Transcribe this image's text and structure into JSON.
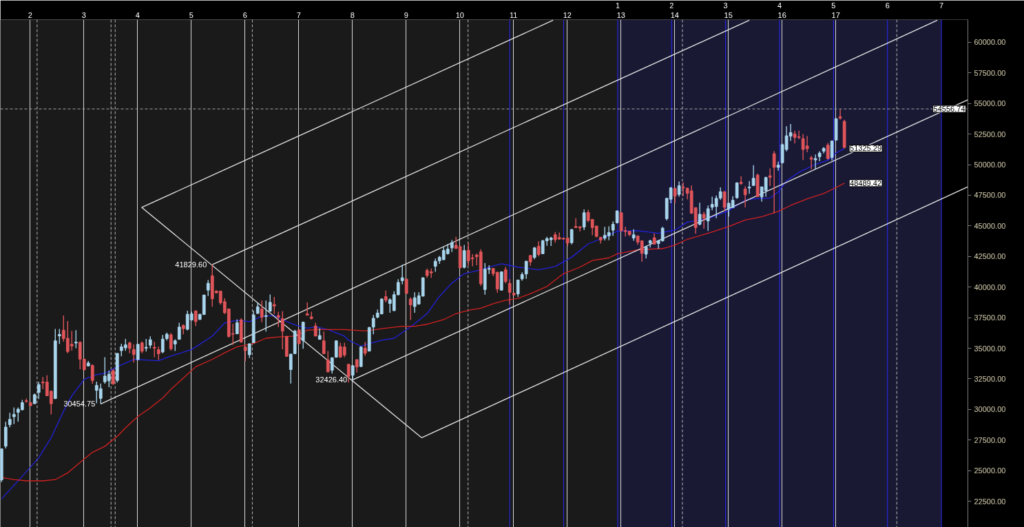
{
  "chart_data": {
    "type": "candlestick",
    "x": [
      1.467,
      1.544,
      1.621,
      1.698,
      1.775,
      1.852,
      1.928,
      2.005,
      2.082,
      2.159,
      2.236,
      2.313,
      2.39,
      2.467,
      2.544,
      2.621,
      2.698,
      2.775,
      2.852,
      2.928,
      3.005,
      3.082,
      3.159,
      3.236,
      3.313,
      3.39,
      3.467,
      3.544,
      3.621,
      3.698,
      3.775,
      3.852,
      3.928,
      4.005,
      4.082,
      4.159,
      4.236,
      4.313,
      4.39,
      4.467,
      4.544,
      4.621,
      4.698,
      4.775,
      4.852,
      4.928,
      5.005,
      5.082,
      5.159,
      5.236,
      5.313,
      5.39,
      5.467,
      5.544,
      5.621,
      5.698,
      5.775,
      5.852,
      5.928,
      6.005,
      6.082,
      6.159,
      6.236,
      6.313,
      6.39,
      6.467,
      6.544,
      6.621,
      6.698,
      6.775,
      6.852,
      6.928,
      7.005,
      7.082,
      7.159,
      7.236,
      7.313,
      7.39,
      7.467,
      7.544,
      7.621,
      7.698,
      7.775,
      7.852,
      7.928,
      8.005,
      8.082,
      8.159,
      8.236,
      8.313,
      8.39,
      8.467,
      8.544,
      8.621,
      8.698,
      8.775,
      8.852,
      8.928,
      9.005,
      9.082,
      9.159,
      9.236,
      9.313,
      9.39,
      9.467,
      9.544,
      9.621,
      9.698,
      9.775,
      9.852,
      9.928,
      10.005,
      10.082,
      10.159,
      10.236,
      10.313,
      10.39,
      10.467,
      10.544,
      10.621,
      10.698,
      10.775,
      10.852,
      10.928,
      11.005,
      11.082,
      11.159,
      11.236,
      11.313,
      11.39,
      11.467,
      11.544,
      11.621,
      11.698,
      11.775,
      11.852,
      11.928,
      12.005,
      12.082,
      12.159,
      12.236,
      12.313,
      12.39,
      12.467,
      12.544,
      12.621,
      12.698,
      12.775,
      12.852,
      12.928,
      13.005,
      13.082,
      13.159,
      13.236,
      13.313,
      13.39,
      13.467,
      13.544,
      13.621,
      13.698,
      13.775,
      13.852,
      13.928,
      14.005,
      14.082,
      14.159,
      14.236,
      14.313,
      14.39,
      14.467,
      14.544,
      14.621,
      14.698,
      14.775,
      14.852,
      14.928,
      15.005,
      15.082,
      15.159,
      15.236,
      15.313,
      15.39,
      15.467,
      15.544,
      15.621,
      15.698,
      15.775,
      15.852,
      15.928,
      16.005,
      16.082,
      16.159,
      16.236,
      16.313,
      16.39,
      16.467,
      16.544,
      16.621,
      16.698,
      16.775,
      16.852,
      16.928,
      17.005,
      17.082,
      17.159
    ],
    "ohlc": [
      [
        24250,
        26800,
        24070,
        26780
      ],
      [
        27000,
        28990,
        26820,
        28560
      ],
      [
        28760,
        29730,
        28540,
        29190
      ],
      [
        29410,
        30170,
        28810,
        29590
      ],
      [
        29770,
        30170,
        29010,
        30020
      ],
      [
        29980,
        30780,
        29910,
        30560
      ],
      [
        30710,
        30890,
        30560,
        30650
      ],
      [
        30560,
        30600,
        30300,
        30310
      ],
      [
        30470,
        31300,
        30470,
        31210
      ],
      [
        31390,
        32260,
        30850,
        32030
      ],
      [
        32240,
        32660,
        31670,
        32170
      ],
      [
        32240,
        32790,
        31090,
        31120
      ],
      [
        31490,
        31550,
        29600,
        30470
      ],
      [
        30890,
        36580,
        30850,
        35610
      ],
      [
        36010,
        36580,
        35350,
        36130
      ],
      [
        36480,
        37670,
        35540,
        35790
      ],
      [
        35820,
        37230,
        34600,
        34740
      ],
      [
        35320,
        36420,
        34810,
        35190
      ],
      [
        35430,
        36480,
        35010,
        35500
      ],
      [
        35500,
        35550,
        33290,
        34110
      ],
      [
        34110,
        34150,
        33200,
        33240
      ],
      [
        33560,
        33960,
        33510,
        33800
      ],
      [
        33600,
        33690,
        32100,
        32370
      ],
      [
        31560,
        32280,
        30510,
        31970
      ],
      [
        30910,
        32120,
        30454.75,
        31700
      ],
      [
        32260,
        34270,
        32100,
        32730
      ],
      [
        32340,
        33180,
        31830,
        32880
      ],
      [
        33170,
        33290,
        32010,
        32100
      ],
      [
        32370,
        34600,
        32210,
        34580
      ],
      [
        34810,
        35370,
        34340,
        35120
      ],
      [
        35030,
        35770,
        34790,
        35280
      ],
      [
        35440,
        35520,
        34600,
        34990
      ],
      [
        34900,
        35320,
        33840,
        34490
      ],
      [
        34070,
        35350,
        34020,
        35320
      ],
      [
        35440,
        35550,
        34600,
        34760
      ],
      [
        35010,
        35770,
        34740,
        35080
      ],
      [
        35250,
        35970,
        34990,
        35700
      ],
      [
        35080,
        35540,
        34270,
        35010
      ],
      [
        34880,
        35140,
        34050,
        34560
      ],
      [
        34700,
        36080,
        34600,
        35750
      ],
      [
        35790,
        36280,
        35640,
        36150
      ],
      [
        36100,
        36240,
        34810,
        34960
      ],
      [
        35350,
        35730,
        34780,
        35610
      ],
      [
        35730,
        37090,
        35700,
        36730
      ],
      [
        36870,
        36960,
        36150,
        36600
      ],
      [
        36550,
        38070,
        36460,
        37780
      ],
      [
        37310,
        37990,
        37270,
        37810
      ],
      [
        38050,
        38100,
        36820,
        37180
      ],
      [
        37360,
        37810,
        37310,
        37780
      ],
      [
        37760,
        39380,
        37720,
        39350
      ],
      [
        39750,
        40580,
        39260,
        40310
      ],
      [
        40920,
        41829.6,
        38390,
        39040
      ],
      [
        39670,
        39750,
        39480,
        39530
      ],
      [
        39670,
        39700,
        38570,
        38720
      ],
      [
        38810,
        39080,
        37810,
        37900
      ],
      [
        38210,
        38250,
        35860,
        35970
      ],
      [
        36200,
        37000,
        35280,
        36150
      ],
      [
        36190,
        37360,
        36150,
        37090
      ],
      [
        37320,
        37450,
        35460,
        35500
      ],
      [
        35100,
        35150,
        33930,
        34810
      ],
      [
        34470,
        35400,
        34200,
        35370
      ],
      [
        35460,
        38080,
        35420,
        37720
      ],
      [
        37850,
        38720,
        37810,
        38390
      ],
      [
        38210,
        38900,
        37130,
        37540
      ],
      [
        37600,
        38900,
        36370,
        37670
      ],
      [
        38030,
        39400,
        37990,
        38750
      ],
      [
        38570,
        39200,
        37810,
        38450
      ],
      [
        37670,
        37990,
        36730,
        37540
      ],
      [
        37410,
        38030,
        34920,
        36400
      ],
      [
        35970,
        36000,
        34300,
        34340
      ],
      [
        33260,
        34550,
        32120,
        34520
      ],
      [
        34560,
        36510,
        34520,
        36400
      ],
      [
        36510,
        36550,
        35350,
        35370
      ],
      [
        35640,
        37180,
        34960,
        37130
      ],
      [
        37810,
        38750,
        37670,
        37700
      ],
      [
        37560,
        37990,
        37360,
        37430
      ],
      [
        36820,
        37090,
        35970,
        36000
      ],
      [
        35730,
        36640,
        35700,
        36040
      ],
      [
        35610,
        36370,
        34520,
        34560
      ],
      [
        34050,
        34780,
        33020,
        33080
      ],
      [
        33200,
        34250,
        32930,
        34230
      ],
      [
        34270,
        35640,
        34230,
        35610
      ],
      [
        35140,
        35460,
        34200,
        34290
      ],
      [
        35100,
        35460,
        34270,
        34450
      ],
      [
        33690,
        33740,
        32210,
        32710
      ],
      [
        32800,
        33600,
        32426.4,
        33580
      ],
      [
        34070,
        34110,
        33020,
        33470
      ],
      [
        33510,
        35170,
        33470,
        35100
      ],
      [
        35010,
        35520,
        34380,
        34590
      ],
      [
        34770,
        36760,
        34740,
        36690
      ],
      [
        36730,
        37720,
        36150,
        37450
      ],
      [
        37540,
        38170,
        37450,
        37880
      ],
      [
        37810,
        39080,
        37780,
        39020
      ],
      [
        39220,
        39710,
        38750,
        38930
      ],
      [
        38660,
        39080,
        37900,
        38970
      ],
      [
        38080,
        39660,
        38030,
        39380
      ],
      [
        39370,
        40650,
        39330,
        40380
      ],
      [
        40520,
        41830,
        40220,
        40760
      ],
      [
        40650,
        40700,
        39440,
        39480
      ],
      [
        39020,
        39170,
        37310,
        38540
      ],
      [
        38410,
        39570,
        37900,
        39130
      ],
      [
        38610,
        39580,
        38570,
        39290
      ],
      [
        39260,
        40800,
        39220,
        40760
      ],
      [
        41360,
        41520,
        40760,
        40940
      ],
      [
        41250,
        41520,
        40760,
        41160
      ],
      [
        41700,
        42330,
        41250,
        42110
      ],
      [
        42150,
        42550,
        41900,
        42440
      ],
      [
        42240,
        43270,
        42190,
        43000
      ],
      [
        42730,
        43510,
        42660,
        43110
      ],
      [
        43200,
        43850,
        42870,
        43630
      ],
      [
        43420,
        44100,
        43110,
        43160
      ],
      [
        43310,
        43350,
        41550,
        41570
      ],
      [
        41610,
        43450,
        41520,
        42980
      ],
      [
        43020,
        43600,
        41750,
        42150
      ],
      [
        42390,
        42690,
        41700,
        42310
      ],
      [
        42620,
        42730,
        41790,
        42480
      ],
      [
        42870,
        43090,
        40090,
        40270
      ],
      [
        39800,
        41970,
        39380,
        41460
      ],
      [
        41450,
        41790,
        41070,
        41520
      ],
      [
        41520,
        41550,
        40890,
        41100
      ],
      [
        41190,
        41280,
        39530,
        39840
      ],
      [
        39750,
        41280,
        39710,
        41250
      ],
      [
        41410,
        41660,
        40310,
        40450
      ],
      [
        40310,
        40650,
        38570,
        39570
      ],
      [
        39490,
        39560,
        39300,
        39350
      ],
      [
        39440,
        40610,
        39200,
        40580
      ],
      [
        40670,
        41210,
        40520,
        41030
      ],
      [
        41070,
        42150,
        40670,
        42110
      ],
      [
        42580,
        42620,
        41750,
        42060
      ],
      [
        42420,
        43270,
        42280,
        43200
      ],
      [
        43340,
        43740,
        42510,
        42660
      ],
      [
        42730,
        43870,
        42690,
        43780
      ],
      [
        43780,
        44100,
        43380,
        43960
      ],
      [
        43870,
        44100,
        43360,
        44010
      ],
      [
        44280,
        44500,
        43630,
        43870
      ],
      [
        44050,
        44460,
        43870,
        43920
      ],
      [
        43990,
        44030,
        43880,
        43920
      ],
      [
        44010,
        44050,
        43330,
        43600
      ],
      [
        43630,
        44740,
        43490,
        44700
      ],
      [
        44950,
        45620,
        44830,
        44860
      ],
      [
        44930,
        44970,
        44540,
        44830
      ],
      [
        44900,
        46350,
        44650,
        46070
      ],
      [
        46110,
        46310,
        45310,
        45440
      ],
      [
        45530,
        45560,
        44230,
        44860
      ],
      [
        44990,
        45000,
        44050,
        44140
      ],
      [
        44070,
        44100,
        43560,
        43850
      ],
      [
        43990,
        44930,
        43810,
        44230
      ],
      [
        44190,
        44970,
        43830,
        44450
      ],
      [
        44650,
        45370,
        44180,
        45130
      ],
      [
        45260,
        46270,
        45190,
        46220
      ],
      [
        46070,
        46100,
        44560,
        44590
      ],
      [
        44610,
        44930,
        44140,
        44540
      ],
      [
        44560,
        44580,
        44180,
        44280
      ],
      [
        44010,
        44720,
        43780,
        44270
      ],
      [
        44180,
        44200,
        43450,
        43670
      ],
      [
        43780,
        43800,
        42060,
        42750
      ],
      [
        42690,
        43380,
        42330,
        43290
      ],
      [
        43600,
        43870,
        43240,
        43780
      ],
      [
        44030,
        44390,
        43470,
        43510
      ],
      [
        43560,
        43870,
        43140,
        43780
      ],
      [
        43780,
        44930,
        43720,
        44810
      ],
      [
        45590,
        47300,
        45440,
        47250
      ],
      [
        47180,
        48190,
        46850,
        48100
      ],
      [
        48060,
        48120,
        46850,
        47430
      ],
      [
        47570,
        48620,
        47390,
        48280
      ],
      [
        48170,
        48550,
        47430,
        48100
      ],
      [
        48080,
        48120,
        47180,
        47660
      ],
      [
        47860,
        48300,
        46000,
        46020
      ],
      [
        46490,
        46520,
        44360,
        44860
      ],
      [
        45130,
        46890,
        45040,
        45950
      ],
      [
        45950,
        46160,
        44770,
        45620
      ],
      [
        45400,
        46670,
        44590,
        46400
      ],
      [
        46520,
        47390,
        46270,
        46760
      ],
      [
        46580,
        47480,
        45620,
        47250
      ],
      [
        47270,
        48150,
        47120,
        47790
      ],
      [
        47790,
        47840,
        46220,
        46520
      ],
      [
        46400,
        46880,
        45770,
        46850
      ],
      [
        46490,
        47430,
        46450,
        47090
      ],
      [
        47300,
        48570,
        47210,
        48510
      ],
      [
        48570,
        49060,
        48350,
        48460
      ],
      [
        48010,
        48240,
        46520,
        47540
      ],
      [
        48100,
        48660,
        47630,
        48170
      ],
      [
        48300,
        49960,
        48260,
        48890
      ],
      [
        49150,
        49270,
        47360,
        47390
      ],
      [
        47360,
        48200,
        46980,
        48190
      ],
      [
        47880,
        49020,
        47390,
        48950
      ],
      [
        49090,
        49690,
        48260,
        48970
      ],
      [
        50900,
        51120,
        46040,
        49780
      ],
      [
        49780,
        50250,
        49510,
        49960
      ],
      [
        50160,
        51730,
        50100,
        51640
      ],
      [
        51240,
        53140,
        51080,
        52360
      ],
      [
        52330,
        53320,
        51950,
        52620
      ],
      [
        52510,
        52780,
        51730,
        52220
      ],
      [
        52290,
        52780,
        52090,
        52220
      ],
      [
        52130,
        52510,
        50380,
        51240
      ],
      [
        51530,
        52350,
        51010,
        51300
      ],
      [
        50560,
        50740,
        49620,
        50450
      ],
      [
        50390,
        50830,
        49620,
        50500
      ],
      [
        50650,
        51100,
        50290,
        50950
      ],
      [
        51100,
        51440,
        50920,
        51330
      ],
      [
        51590,
        51770,
        50430,
        50500
      ],
      [
        50590,
        51970,
        50320,
        51930
      ],
      [
        52000,
        53780,
        51970,
        53760
      ],
      [
        53920,
        54500,
        53680,
        53810
      ],
      [
        53540,
        53680,
        51320,
        51410
      ]
    ],
    "colors": [
      "#a8d4ec",
      "#a8d4ec",
      "#a8d4ec",
      "#a8d4ec",
      "#a8d4ec",
      "#a8d4ec",
      "#e0555a",
      "#e0555a",
      "#a8d4ec",
      "#a8d4ec",
      "#e0555a",
      "#e0555a",
      "#e0555a",
      "#a8d4ec",
      "#a8d4ec",
      "#e0555a",
      "#e0555a",
      "#e0555a",
      "#a8d4ec",
      "#e0555a",
      "#e0555a",
      "#a8d4ec",
      "#e0555a",
      "#a8d4ec",
      "#a8d4ec",
      "#a8d4ec",
      "#a8d4ec",
      "#e0555a",
      "#a8d4ec",
      "#a8d4ec",
      "#a8d4ec",
      "#e0555a",
      "#e0555a",
      "#a8d4ec",
      "#e0555a",
      "#a8d4ec",
      "#a8d4ec",
      "#e0555a",
      "#e0555a",
      "#a8d4ec",
      "#a8d4ec",
      "#e0555a",
      "#a8d4ec",
      "#a8d4ec",
      "#e0555a",
      "#a8d4ec",
      "#a8d4ec",
      "#e0555a",
      "#a8d4ec",
      "#a8d4ec",
      "#a8d4ec",
      "#e0555a",
      "#e0555a",
      "#e0555a",
      "#e0555a",
      "#e0555a",
      "#e0555a",
      "#a8d4ec",
      "#e0555a",
      "#e0555a",
      "#a8d4ec",
      "#a8d4ec",
      "#a8d4ec",
      "#e0555a",
      "#a8d4ec",
      "#a8d4ec",
      "#e0555a",
      "#e0555a",
      "#e0555a",
      "#e0555a",
      "#a8d4ec",
      "#a8d4ec",
      "#e0555a",
      "#a8d4ec",
      "#e0555a",
      "#e0555a",
      "#e0555a",
      "#a8d4ec",
      "#e0555a",
      "#e0555a",
      "#a8d4ec",
      "#a8d4ec",
      "#e0555a",
      "#e0555a",
      "#e0555a",
      "#a8d4ec",
      "#e0555a",
      "#a8d4ec",
      "#e0555a",
      "#a8d4ec",
      "#a8d4ec",
      "#a8d4ec",
      "#a8d4ec",
      "#e0555a",
      "#a8d4ec",
      "#a8d4ec",
      "#a8d4ec",
      "#a8d4ec",
      "#e0555a",
      "#e0555a",
      "#a8d4ec",
      "#a8d4ec",
      "#a8d4ec",
      "#e0555a",
      "#e0555a",
      "#a8d4ec",
      "#a8d4ec",
      "#a8d4ec",
      "#a8d4ec",
      "#a8d4ec",
      "#e0555a",
      "#e0555a",
      "#a8d4ec",
      "#e0555a",
      "#e0555a",
      "#e0555a",
      "#e0555a",
      "#a8d4ec",
      "#a8d4ec",
      "#e0555a",
      "#e0555a",
      "#a8d4ec",
      "#e0555a",
      "#e0555a",
      "#e0555a",
      "#a8d4ec",
      "#a8d4ec",
      "#a8d4ec",
      "#e0555a",
      "#a8d4ec",
      "#e0555a",
      "#a8d4ec",
      "#a8d4ec",
      "#a8d4ec",
      "#e0555a",
      "#e0555a",
      "#e0555a",
      "#e0555a",
      "#a8d4ec",
      "#e0555a",
      "#e0555a",
      "#a8d4ec",
      "#e0555a",
      "#e0555a",
      "#e0555a",
      "#e0555a",
      "#a8d4ec",
      "#a8d4ec",
      "#a8d4ec",
      "#a8d4ec",
      "#e0555a",
      "#e0555a",
      "#e0555a",
      "#a8d4ec",
      "#e0555a",
      "#e0555a",
      "#a8d4ec",
      "#a8d4ec",
      "#e0555a",
      "#a8d4ec",
      "#a8d4ec",
      "#a8d4ec",
      "#a8d4ec",
      "#e0555a",
      "#a8d4ec",
      "#e0555a",
      "#e0555a",
      "#e0555a",
      "#e0555a",
      "#a8d4ec",
      "#e0555a",
      "#a8d4ec",
      "#a8d4ec",
      "#a8d4ec",
      "#a8d4ec",
      "#e0555a",
      "#a8d4ec",
      "#a8d4ec",
      "#a8d4ec",
      "#e0555a",
      "#e0555a",
      "#a8d4ec",
      "#a8d4ec",
      "#e0555a",
      "#a8d4ec",
      "#a8d4ec",
      "#e0555a",
      "#e0555a",
      "#a8d4ec",
      "#a8d4ec",
      "#a8d4ec",
      "#a8d4ec",
      "#e0555a",
      "#e0555a",
      "#e0555a",
      "#e0555a",
      "#e0555a",
      "#a8d4ec",
      "#a8d4ec",
      "#a8d4ec",
      "#e0555a",
      "#a8d4ec",
      "#a8d4ec",
      "#e0555a",
      "#e0555a"
    ],
    "xlim": [
      1.444,
      19.459
    ],
    "xticks": [
      2,
      3,
      4,
      5,
      6,
      7,
      8,
      9,
      10,
      11,
      12,
      13,
      14,
      15,
      16,
      17
    ],
    "x2lim": [
      -10.44,
      7.49
    ],
    "x2ticks": [
      {
        "value": -1,
        "label": null
      },
      {
        "value": 0,
        "label": null
      },
      1,
      2,
      3,
      4,
      5,
      6,
      7
    ],
    "ylim": [
      20370,
      61850
    ],
    "yticks": [
      {
        "value": 22500,
        "label": "22500.00"
      },
      {
        "value": 25000,
        "label": "25000.00"
      },
      {
        "value": 27500,
        "label": "27500.00"
      },
      {
        "value": 30000,
        "label": "30000.00"
      },
      {
        "value": 32500,
        "label": "32500.00"
      },
      {
        "value": 35000,
        "label": "35000.00"
      },
      {
        "value": 37500,
        "label": "37500.00"
      },
      {
        "value": 40000,
        "label": "40000.00"
      },
      {
        "value": 42500,
        "label": "42500.00"
      },
      {
        "value": 45000,
        "label": "45000.00"
      },
      {
        "value": 47500,
        "label": "47500.00"
      },
      {
        "value": 50000,
        "label": "50000.00"
      },
      {
        "value": 52500,
        "label": "52500.00"
      },
      {
        "value": 55000,
        "label": "55000.00"
      },
      {
        "value": 57500,
        "label": "57500.00"
      },
      {
        "value": 60000,
        "label": "60000.00"
      }
    ],
    "grid": "x",
    "series": [
      {
        "type": "line",
        "color": "#2222e0",
        "x": [
          1.467,
          1.852,
          2.159,
          2.39,
          2.621,
          2.775,
          3.005,
          3.236,
          3.39,
          3.621,
          3.928,
          4.159,
          4.39,
          4.621,
          5.005,
          5.39,
          5.621,
          5.852,
          6.082,
          6.313,
          6.544,
          6.698,
          6.928,
          7.159,
          7.313,
          7.544,
          7.852,
          7.928,
          8.159,
          8.313,
          8.544,
          8.775,
          9.082,
          9.39,
          9.621,
          9.852,
          10.082,
          10.39,
          10.544,
          10.775,
          11.082,
          11.467,
          11.775,
          12.082,
          12.39,
          12.698,
          12.928,
          13.313,
          13.698,
          14.005,
          14.236,
          14.621,
          15.005,
          15.313,
          15.467,
          15.775,
          15.928,
          16.082,
          16.313,
          16.621,
          16.852,
          17.005,
          17.159
        ],
        "values": [
          22700,
          24540,
          26060,
          27690,
          29860,
          31110,
          32460,
          32840,
          32950,
          33490,
          34090,
          34040,
          33980,
          34360,
          34900,
          35990,
          37070,
          37290,
          37180,
          37610,
          37670,
          37340,
          36910,
          36640,
          36750,
          36530,
          35990,
          35660,
          35170,
          35390,
          35660,
          35820,
          36750,
          37830,
          39240,
          40330,
          41090,
          41410,
          41630,
          41900,
          41630,
          41410,
          41680,
          42440,
          43530,
          44070,
          44560,
          44610,
          44390,
          44660,
          45310,
          45590,
          46240,
          47100,
          47210,
          47270,
          47760,
          48680,
          49380,
          50030,
          50360,
          50950,
          51325.29
        ],
        "value_labels": [
          null,
          null,
          null,
          null,
          null,
          null,
          null,
          null,
          null,
          null,
          null,
          null,
          null,
          null,
          null,
          null,
          null,
          null,
          null,
          null,
          null,
          null,
          null,
          null,
          null,
          null,
          null,
          null,
          null,
          null,
          null,
          null,
          null,
          null,
          null,
          null,
          null,
          null,
          null,
          null,
          null,
          null,
          null,
          null,
          null,
          null,
          null,
          null,
          null,
          null,
          null,
          null,
          null,
          null,
          null,
          null,
          null,
          null,
          null,
          null,
          null,
          null,
          "51325.29"
        ]
      },
      {
        "type": "line",
        "color": "#d42020",
        "x": [
          1.467,
          1.698,
          1.928,
          2.236,
          2.467,
          2.698,
          2.928,
          3.159,
          3.39,
          3.621,
          3.775,
          4.005,
          4.236,
          4.467,
          4.621,
          4.852,
          5.082,
          5.39,
          5.621,
          5.852,
          6.159,
          6.39,
          6.621,
          6.928,
          7.159,
          7.39,
          7.852,
          8.236,
          8.621,
          8.928,
          9.159,
          9.39,
          9.698,
          9.928,
          10.159,
          10.39,
          10.621,
          10.852,
          11.082,
          11.313,
          11.621,
          11.928,
          12.236,
          12.467,
          12.775,
          12.928,
          13.313,
          13.775,
          14.005,
          14.236,
          14.621,
          15.005,
          15.313,
          15.621,
          15.928,
          16.159,
          16.467,
          16.775,
          17.005,
          17.159
        ],
        "values": [
          24440,
          24270,
          24170,
          24170,
          24270,
          24820,
          25680,
          26500,
          26990,
          27800,
          28500,
          29430,
          30130,
          30940,
          31650,
          32570,
          33490,
          34090,
          34630,
          35120,
          35390,
          35820,
          35930,
          35990,
          36480,
          36530,
          36530,
          36420,
          36640,
          36800,
          36800,
          36960,
          37340,
          37830,
          38100,
          38270,
          38640,
          38920,
          39080,
          39460,
          40050,
          41090,
          41630,
          42170,
          42390,
          42710,
          43040,
          43150,
          43420,
          43910,
          44390,
          44940,
          45480,
          45750,
          46180,
          46670,
          47210,
          47650,
          48130,
          48489.42
        ],
        "value_labels": [
          null,
          null,
          null,
          null,
          null,
          null,
          null,
          null,
          null,
          null,
          null,
          null,
          null,
          null,
          null,
          null,
          null,
          null,
          null,
          null,
          null,
          null,
          null,
          null,
          null,
          null,
          null,
          null,
          null,
          null,
          null,
          null,
          null,
          null,
          null,
          null,
          null,
          null,
          null,
          null,
          null,
          null,
          null,
          null,
          null,
          null,
          null,
          null,
          null,
          null,
          null,
          null,
          null,
          null,
          null,
          null,
          null,
          null,
          null,
          "48489.42"
        ]
      },
      {
        "type": "line",
        "color": "#e6e6e6",
        "x": [
          4.075,
          11.736
        ],
        "values": [
          46510,
          61800
        ]
      },
      {
        "type": "line",
        "color": "#e6e6e6",
        "x": [
          5.39,
          15.39
        ],
        "values": [
          41829.6,
          61800
        ]
      },
      {
        "type": "line",
        "color": "#e6e6e6",
        "x": [
          3.313,
          18.89
        ],
        "values": [
          30454.75,
          61800
        ]
      },
      {
        "type": "line",
        "color": "#e6e6e6",
        "x": [
          8.005,
          19.459
        ],
        "values": [
          32426.4,
          55300
        ]
      },
      {
        "type": "line",
        "color": "#e6e6e6",
        "x": [
          9.29,
          19.459
        ],
        "values": [
          27690,
          48190
        ]
      },
      {
        "type": "line",
        "color": "#e6e6e6",
        "x": [
          4.075,
          9.29
        ],
        "values": [
          46510,
          27690
        ]
      }
    ],
    "bands": [
      {
        "axis": "x2",
        "from": 1,
        "to": 7,
        "color": "#191934"
      },
      {
        "axis": "x2",
        "from": 7,
        "to": 7.49,
        "color": "#000000"
      }
    ],
    "ref_lines": [
      {
        "axis": "x",
        "value": 2.129,
        "color": "#bdbdbd",
        "line_style": "dashed"
      },
      {
        "axis": "x",
        "value": 3.505,
        "color": "#bdbdbd",
        "line_style": "dashed"
      },
      {
        "axis": "x",
        "value": 3.582,
        "color": "#bdbdbd",
        "line_style": "dashed"
      },
      {
        "axis": "x",
        "value": 6.136,
        "color": "#bdbdbd",
        "line_style": "dashed"
      },
      {
        "axis": "x",
        "value": 10.152,
        "color": "#bdbdbd",
        "line_style": "dashed"
      },
      {
        "axis": "x",
        "value": 14.144,
        "color": "#bdbdbd",
        "line_style": "dashed"
      },
      {
        "axis": "x",
        "value": 18.136,
        "color": "#bdbdbd",
        "line_style": "dashed"
      },
      {
        "axis": "y",
        "value": 54556.74,
        "label": "54556.74",
        "color": "#a8a8a8",
        "line_style": "dashed"
      }
    ],
    "annotations": [
      {
        "text": "41829.60",
        "x": 5.39,
        "y": 41829.6
      },
      {
        "text": "30454.75",
        "x": 3.313,
        "y": 30454.75
      },
      {
        "text": "32426.40",
        "x": 8.005,
        "y": 32426.4
      }
    ]
  }
}
